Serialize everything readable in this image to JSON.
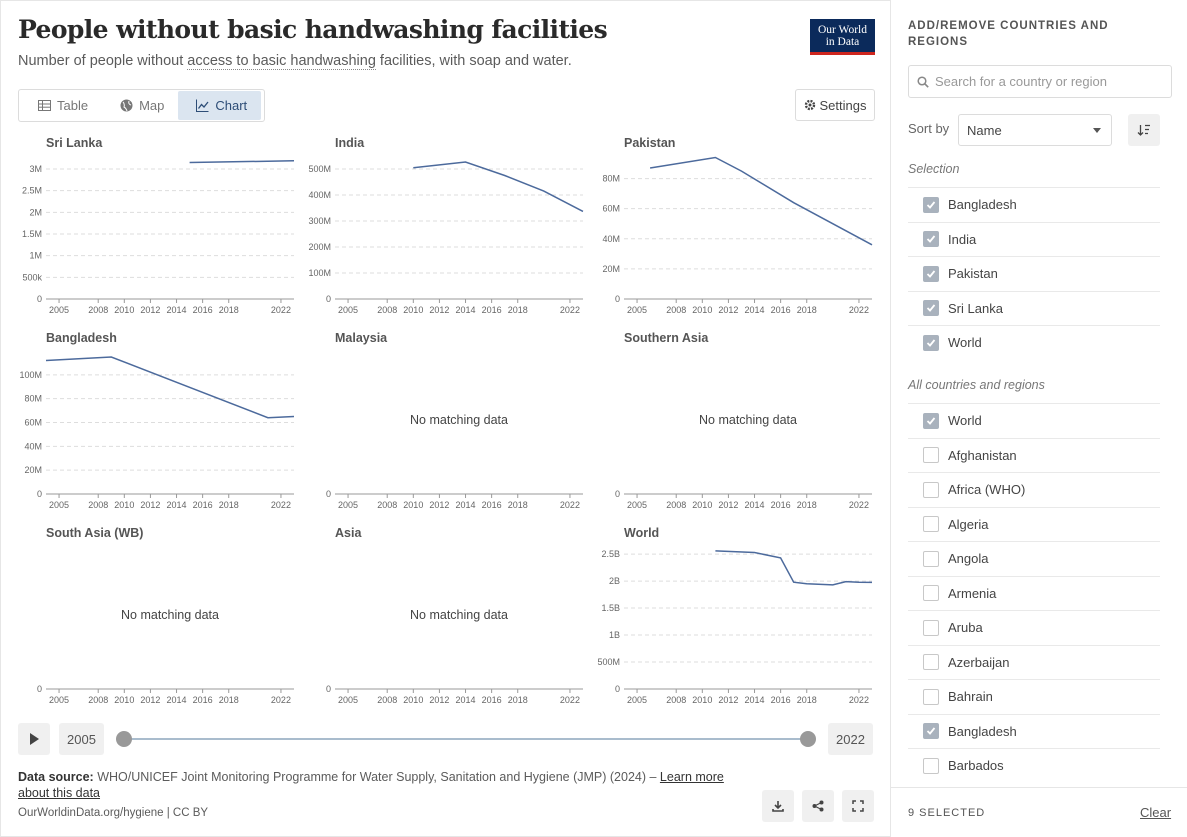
{
  "header": {
    "title": "People without basic handwashing facilities",
    "subtitle_pre": "Number of people without ",
    "subtitle_link": "access to basic handwashing",
    "subtitle_post": " facilities, with soap and water.",
    "logo_line1": "Our World",
    "logo_line2": "in Data"
  },
  "tabs": [
    {
      "label": "Table",
      "icon": "table-icon",
      "active": false
    },
    {
      "label": "Map",
      "icon": "globe-icon",
      "active": false
    },
    {
      "label": "Chart",
      "icon": "line-chart-icon",
      "active": true
    }
  ],
  "settings_label": "Settings",
  "timeline": {
    "start": "2005",
    "end": "2022"
  },
  "footer": {
    "source_label": "Data source:",
    "source_text": " WHO/UNICEF Joint Monitoring Programme for Water Supply, Sanitation and Hygiene (JMP) (2024) – ",
    "learn_more": "Learn more about this data",
    "url": "OurWorldinData.org/hygiene | CC BY"
  },
  "sidebar": {
    "title": "ADD/REMOVE COUNTRIES AND REGIONS",
    "search_placeholder": "Search for a country or region",
    "sort_label": "Sort by",
    "sort_value": "Name",
    "selection_label": "Selection",
    "selection": [
      "Bangladesh",
      "India",
      "Pakistan",
      "Sri Lanka",
      "World"
    ],
    "all_label": "All countries and regions",
    "all": [
      {
        "name": "World",
        "checked": true
      },
      {
        "name": "Afghanistan",
        "checked": false
      },
      {
        "name": "Africa (WHO)",
        "checked": false
      },
      {
        "name": "Algeria",
        "checked": false
      },
      {
        "name": "Angola",
        "checked": false
      },
      {
        "name": "Armenia",
        "checked": false
      },
      {
        "name": "Aruba",
        "checked": false
      },
      {
        "name": "Azerbaijan",
        "checked": false
      },
      {
        "name": "Bahrain",
        "checked": false
      },
      {
        "name": "Bangladesh",
        "checked": true
      },
      {
        "name": "Barbados",
        "checked": false
      }
    ],
    "selected_count": "9 SELECTED",
    "clear_label": "Clear"
  },
  "colors": {
    "line": "#4c6a9c",
    "accent": "#dbe5f0"
  },
  "chart_data": {
    "type": "line",
    "x_ticks": [
      "2005",
      "2008",
      "2010",
      "2012",
      "2014",
      "2016",
      "2018",
      "2022"
    ],
    "xlim": [
      2004,
      2023
    ],
    "no_data_text": "No matching data",
    "panels": [
      {
        "title": "Sri Lanka",
        "ylim": [
          0,
          3300000
        ],
        "yticks": [
          0,
          500000,
          1000000,
          1500000,
          2000000,
          2500000,
          3000000
        ],
        "ytick_labels": [
          "0",
          "500k",
          "1M",
          "1.5M",
          "2M",
          "2.5M",
          "3M"
        ],
        "x": [
          2015,
          2023
        ],
        "y": [
          3150000,
          3190000
        ]
      },
      {
        "title": "India",
        "ylim": [
          0,
          550000000
        ],
        "yticks": [
          0,
          100000000,
          200000000,
          300000000,
          400000000,
          500000000
        ],
        "ytick_labels": [
          "0",
          "100M",
          "200M",
          "300M",
          "400M",
          "500M"
        ],
        "x": [
          2010,
          2014,
          2017,
          2020,
          2023
        ],
        "y": [
          505000000,
          527000000,
          475000000,
          415000000,
          337000000
        ]
      },
      {
        "title": "Pakistan",
        "ylim": [
          0,
          95000000
        ],
        "yticks": [
          0,
          20000000,
          40000000,
          60000000,
          80000000
        ],
        "ytick_labels": [
          "0",
          "20M",
          "40M",
          "60M",
          "80M"
        ],
        "x": [
          2006,
          2011,
          2013,
          2017,
          2023
        ],
        "y": [
          87000000,
          94000000,
          85000000,
          64000000,
          36000000
        ]
      },
      {
        "title": "Bangladesh",
        "ylim": [
          0,
          120000000
        ],
        "yticks": [
          0,
          20000000,
          40000000,
          60000000,
          80000000,
          100000000
        ],
        "ytick_labels": [
          "0",
          "20M",
          "40M",
          "60M",
          "80M",
          "100M"
        ],
        "x": [
          2004,
          2009,
          2021,
          2023
        ],
        "y": [
          112000000,
          115000000,
          64000000,
          65000000
        ]
      },
      {
        "title": "Malaysia",
        "nodata": true
      },
      {
        "title": "Southern Asia",
        "nodata": true
      },
      {
        "title": "South Asia (WB)",
        "nodata": true
      },
      {
        "title": "Asia",
        "nodata": true
      },
      {
        "title": "World",
        "ylim": [
          0,
          2650000000
        ],
        "yticks": [
          0,
          500000000,
          1000000000,
          1500000000,
          2000000000,
          2500000000
        ],
        "ytick_labels": [
          "0",
          "500M",
          "1B",
          "1.5B",
          "2B",
          "2.5B"
        ],
        "x": [
          2011,
          2014,
          2016,
          2017,
          2018,
          2020,
          2021,
          2022,
          2023
        ],
        "y": [
          2560000000,
          2530000000,
          2430000000,
          1980000000,
          1950000000,
          1930000000,
          1990000000,
          1980000000,
          1975000000
        ]
      }
    ]
  }
}
